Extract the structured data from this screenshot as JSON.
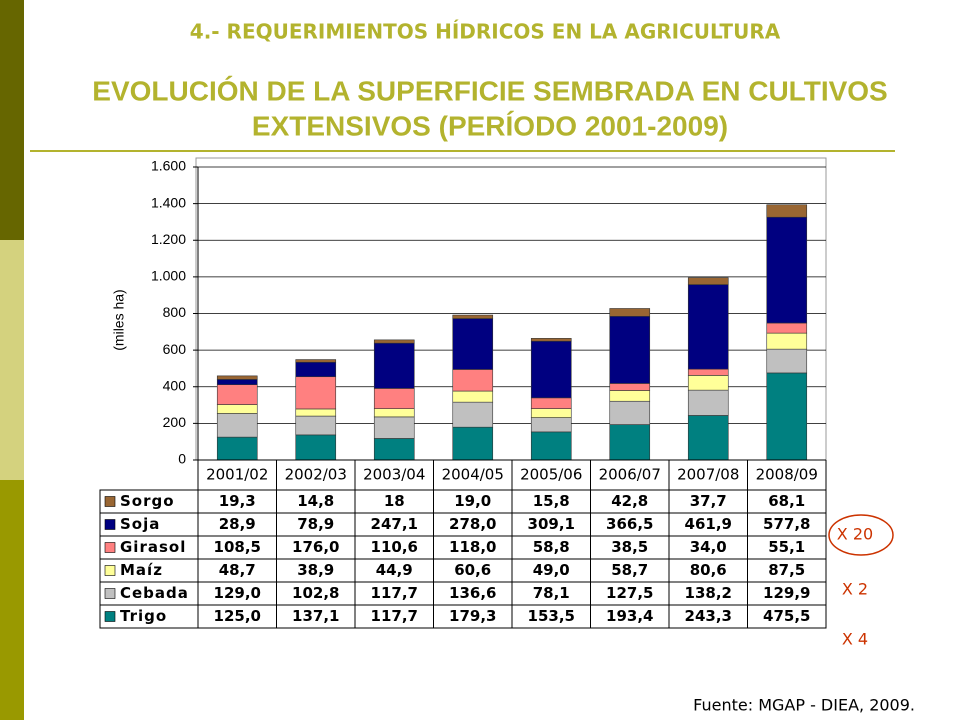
{
  "header": "4.- REQUERIMIENTOS HÍDRICOS EN LA AGRICULTURA",
  "source": "Fuente: MGAP - DIEA, 2009.",
  "chart_data": {
    "type": "stacked_bar",
    "title": [
      "EVOLUCIÓN DE LA SUPERFICIE SEMBRADA EN CULTIVOS",
      "EXTENSIVOS (PERÍODO 2001-2009)"
    ],
    "y_label": "(miles ha)",
    "categories": [
      "2001/02",
      "2002/03",
      "2003/04",
      "2004/05",
      "2005/06",
      "2006/07",
      "2007/08",
      "2008/09"
    ],
    "ylim": [
      0,
      1600
    ],
    "yticks": [
      0,
      200,
      400,
      600,
      800,
      {
        "value": 1000,
        "label": "1.000"
      },
      {
        "value": 1200,
        "label": "1.200"
      },
      {
        "value": 1400,
        "label": "1.400"
      },
      {
        "value": 1600,
        "label": "1.600"
      }
    ],
    "grid": true,
    "series": [
      {
        "name": "Trigo",
        "color": "#008080",
        "values": [
          125.0,
          137.1,
          117.7,
          179.3,
          153.5,
          193.4,
          243.3,
          475.5
        ],
        "value_labels": [
          "125,0",
          "137,1",
          "117,7",
          "179,3",
          "153,5",
          "193,4",
          "243,3",
          "475,5"
        ]
      },
      {
        "name": "Cebada",
        "color": "#c0c0c0",
        "values": [
          129.0,
          102.8,
          117.7,
          136.6,
          78.1,
          127.5,
          138.2,
          129.9
        ],
        "value_labels": [
          "129,0",
          "102,8",
          "117,7",
          "136,6",
          "78,1",
          "127,5",
          "138,2",
          "129,9"
        ]
      },
      {
        "name": "Maíz",
        "color": "#ffff99",
        "values": [
          48.7,
          38.9,
          44.9,
          60.6,
          49.0,
          58.7,
          80.6,
          87.5
        ],
        "value_labels": [
          "48,7",
          "38,9",
          "44,9",
          "60,6",
          "49,0",
          "58,7",
          "80,6",
          "87,5"
        ]
      },
      {
        "name": "Girasol",
        "color": "#ff8080",
        "values": [
          108.5,
          176.0,
          110.6,
          118.0,
          58.8,
          38.5,
          34.0,
          55.1
        ],
        "value_labels": [
          "108,5",
          "176,0",
          "110,6",
          "118,0",
          "58,8",
          "38,5",
          "34,0",
          "55,1"
        ]
      },
      {
        "name": "Soja",
        "color": "#000080",
        "values": [
          28.9,
          78.9,
          247.1,
          278.0,
          309.1,
          366.5,
          461.9,
          577.8
        ],
        "value_labels": [
          "28,9",
          "78,9",
          "247,1",
          "278,0",
          "309,1",
          "366,5",
          "461,9",
          "577,8"
        ]
      },
      {
        "name": "Sorgo",
        "color": "#996633",
        "values": [
          19.3,
          14.8,
          18,
          19.0,
          15.8,
          42.8,
          37.7,
          68.1
        ],
        "value_labels": [
          "19,3",
          "14,8",
          "18",
          "19,0",
          "15,8",
          "42,8",
          "37,7",
          "68,1"
        ]
      }
    ],
    "annotations": [
      "X 20",
      "X 2",
      "X 4"
    ]
  }
}
